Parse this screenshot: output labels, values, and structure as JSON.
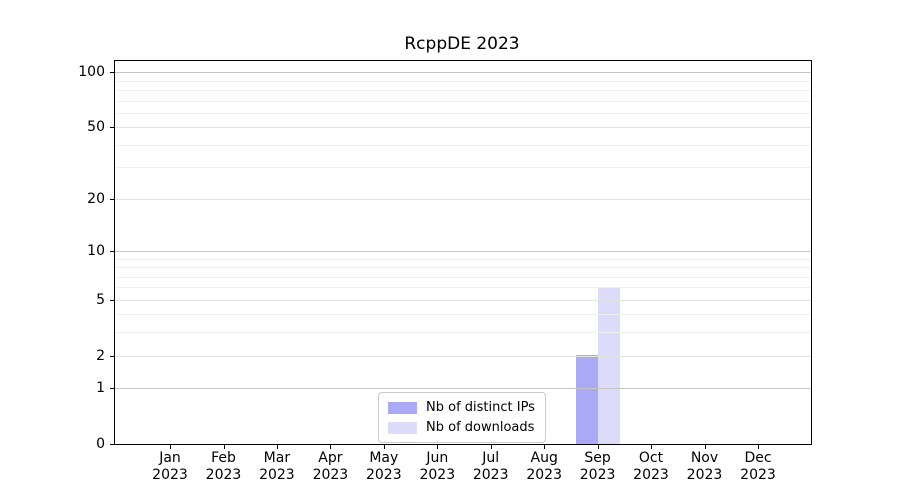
{
  "title": "RcppDE 2023",
  "chart_data": {
    "type": "bar",
    "title": "RcppDE 2023",
    "x_months": [
      "Jan",
      "Feb",
      "Mar",
      "Apr",
      "May",
      "Jun",
      "Jul",
      "Aug",
      "Sep",
      "Oct",
      "Nov",
      "Dec"
    ],
    "x_year": "2023",
    "series": [
      {
        "name": "Nb of distinct IPs",
        "color": "#a9a9f5",
        "values": [
          0,
          0,
          0,
          0,
          0,
          0,
          0,
          0,
          2,
          0,
          0,
          0
        ]
      },
      {
        "name": "Nb of downloads",
        "color": "#dcdcfa",
        "values": [
          0,
          0,
          0,
          0,
          0,
          0,
          0,
          0,
          6,
          0,
          0,
          0
        ]
      }
    ],
    "y_axis": {
      "scale": "log1p",
      "max": 115,
      "major_ticks": [
        0,
        1,
        2,
        5,
        10,
        20,
        50,
        100
      ],
      "minor_gridlines": [
        3,
        4,
        6,
        7,
        8,
        9,
        30,
        40,
        60,
        70,
        80,
        90
      ],
      "emphasized_gridlines": [
        1,
        10,
        100
      ]
    },
    "legend_position": "lower center inside",
    "grid": true
  },
  "colors": {
    "bar_distinct_ips": "#a9a9f5",
    "bar_downloads": "#dcdcfa",
    "grid_major": "#e3e3e3",
    "grid_minor": "#f0f0f0",
    "grid_decade": "#c5c5c5",
    "axis": "#000000"
  }
}
